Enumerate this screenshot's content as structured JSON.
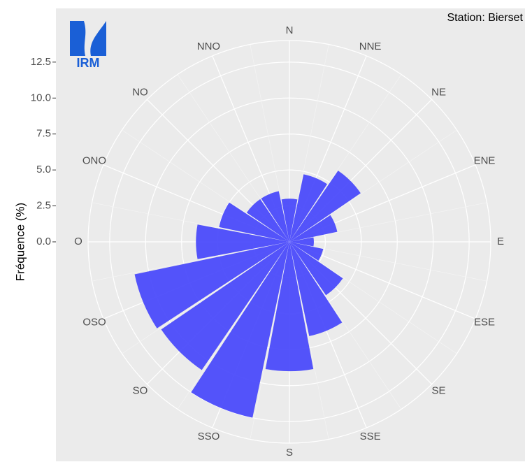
{
  "chart_data": {
    "type": "polar-bar",
    "annotation": "Station: Bierset",
    "logo_text": "IRM",
    "y_label": "Fréquence (%)",
    "categories": [
      "N",
      "NNE",
      "NE",
      "ENE",
      "E",
      "ESE",
      "SE",
      "SSE",
      "S",
      "SSO",
      "SO",
      "OSO",
      "O",
      "ONO",
      "NO",
      "NNO"
    ],
    "values": [
      3.0,
      4.8,
      6.0,
      3.4,
      1.7,
      2.4,
      4.5,
      6.7,
      9.0,
      12.5,
      10.8,
      11.0,
      6.5,
      5.0,
      3.6,
      3.6
    ],
    "color": "#4b4bfb",
    "ylim": [
      0,
      14
    ],
    "yticks": [
      {
        "value": 0,
        "label": "0.0"
      },
      2.5,
      {
        "value": 5,
        "label": "5.0"
      },
      7.5,
      {
        "value": 10,
        "label": "10.0"
      },
      12.5
    ],
    "grid": true
  }
}
